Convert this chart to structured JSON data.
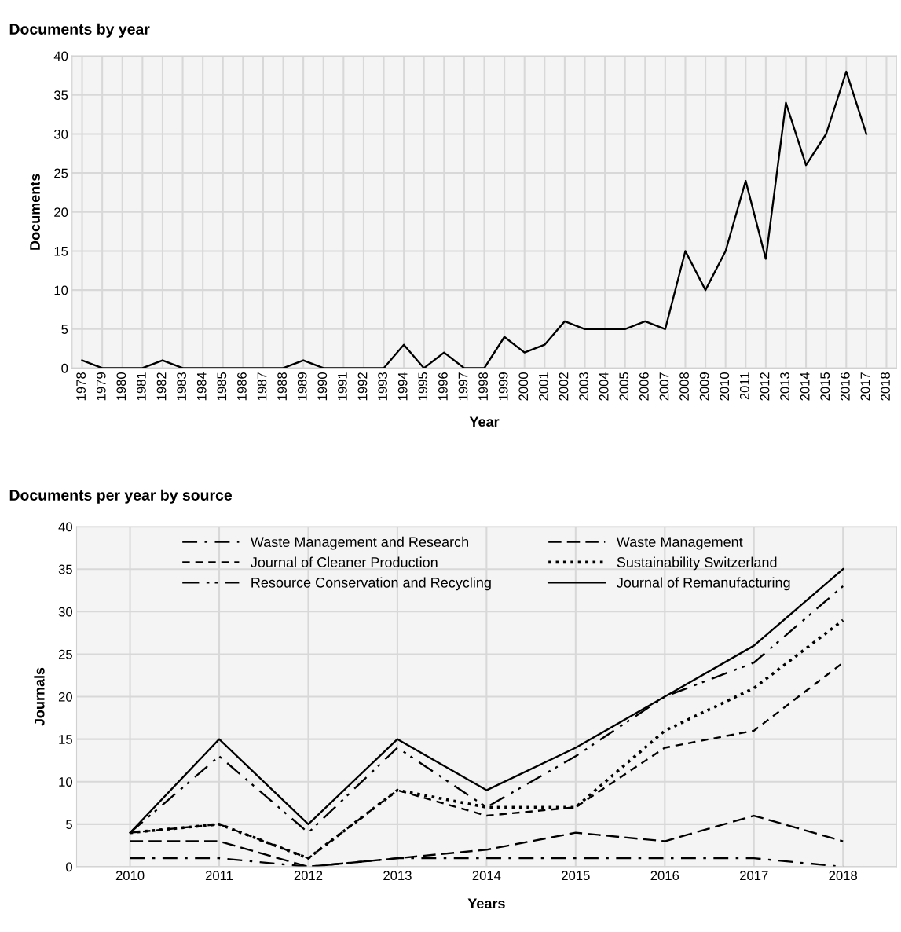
{
  "chart_data": [
    {
      "type": "line",
      "title": "Documents by year",
      "xlabel": "Year",
      "ylabel": "Documents",
      "categories": [
        "1978",
        "1979",
        "1980",
        "1981",
        "1982",
        "1983",
        "1984",
        "1985",
        "1986",
        "1987",
        "1988",
        "1989",
        "1990",
        "1991",
        "1992",
        "1993",
        "1994",
        "1995",
        "1996",
        "1997",
        "1998",
        "1999",
        "2000",
        "2001",
        "2002",
        "2003",
        "2004",
        "2005",
        "2006",
        "2007",
        "2008",
        "2009",
        "2010",
        "2011",
        "2012",
        "2013",
        "2014",
        "2015",
        "2016",
        "2017",
        "2018"
      ],
      "series": [
        {
          "color": "#000000",
          "values": [
            1,
            0,
            0,
            0,
            1,
            0,
            0,
            0,
            0,
            0,
            0,
            1,
            0,
            0,
            0,
            0,
            3,
            0,
            2,
            0,
            0,
            4,
            2,
            3,
            6,
            5,
            5,
            5,
            6,
            5,
            15,
            10,
            15,
            24,
            14,
            34,
            26,
            30,
            38,
            30,
            null
          ]
        }
      ],
      "ylim": [
        0,
        40
      ],
      "yticks": [
        0,
        5,
        10,
        15,
        20,
        25,
        30,
        35,
        40
      ],
      "grid": true,
      "legend": false,
      "line_style": "solid"
    },
    {
      "type": "line",
      "title": "Documents per year by source",
      "xlabel": "Years",
      "ylabel": "Journals",
      "categories": [
        "2010",
        "2011",
        "2012",
        "2013",
        "2014",
        "2015",
        "2016",
        "2017",
        "2018"
      ],
      "series": [
        {
          "name": "Waste Management and Research",
          "color": "#000000",
          "line_style": "dashdot",
          "values": [
            1,
            1,
            0,
            1,
            1,
            1,
            1,
            1,
            0
          ]
        },
        {
          "name": "Waste Management",
          "color": "#000000",
          "line_style": "longdash",
          "values": [
            3,
            3,
            0,
            1,
            2,
            4,
            3,
            6,
            3
          ]
        },
        {
          "name": "Journal of Cleaner Production",
          "color": "#000000",
          "line_style": "dashed",
          "values": [
            4,
            5,
            1,
            9,
            6,
            7,
            14,
            16,
            24
          ]
        },
        {
          "name": "Sustainability Switzerland",
          "color": "#000000",
          "line_style": "dotted",
          "values": [
            4,
            5,
            1,
            9,
            7,
            7,
            16,
            21,
            29
          ]
        },
        {
          "name": "Resource Conservation and Recycling",
          "color": "#000000",
          "line_style": "dashdotdot",
          "values": [
            4,
            13,
            4,
            14,
            7,
            13,
            20,
            24,
            33
          ]
        },
        {
          "name": "Journal of Remanufacturing",
          "color": "#000000",
          "line_style": "solid",
          "values": [
            4,
            15,
            5,
            15,
            9,
            14,
            20,
            26,
            35
          ]
        }
      ],
      "ylim": [
        0,
        40
      ],
      "yticks": [
        0,
        5,
        10,
        15,
        20,
        25,
        30,
        35,
        40
      ],
      "grid": true,
      "legend": "top"
    }
  ]
}
